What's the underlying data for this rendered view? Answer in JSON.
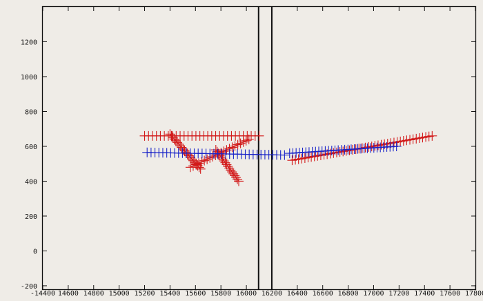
{
  "chart_data": {
    "type": "scatter",
    "title": "",
    "xlabel": "",
    "ylabel": "",
    "x_tick_labels": [
      "-14400",
      "14600",
      "14800",
      "15000",
      "15200",
      "15400",
      "15600",
      "15800",
      "16000",
      "16200",
      "16400",
      "16600",
      "16800",
      "17000",
      "17200",
      "17400",
      "17600",
      "17800"
    ],
    "y_tick_labels": [
      "-200",
      "0",
      "200",
      "400",
      "600",
      "800",
      "1000",
      "1200"
    ],
    "y_ticks": [
      -200,
      0,
      200,
      400,
      600,
      800,
      1000,
      1200
    ],
    "x_index_range": [
      0,
      17
    ],
    "y_range": [
      -220,
      1400
    ],
    "vertical_markers_x_index": [
      8.48,
      9.0
    ],
    "series": [
      {
        "color": "#d21a1a",
        "marker": "+",
        "segments": [
          {
            "from": [
              4.0,
              660
            ],
            "to": [
              8.5,
              660
            ],
            "count": 30
          },
          {
            "from": [
              5.0,
              670
            ],
            "to": [
              6.2,
              470
            ],
            "count": 22
          },
          {
            "from": [
              5.8,
              480
            ],
            "to": [
              8.1,
              640
            ],
            "count": 22
          },
          {
            "from": [
              6.8,
              580
            ],
            "to": [
              7.7,
              400
            ],
            "count": 18
          },
          {
            "from": [
              9.8,
              520
            ],
            "to": [
              15.3,
              660
            ],
            "count": 45
          }
        ]
      },
      {
        "color": "#1a24c8",
        "marker": "+",
        "segments": [
          {
            "from": [
              4.1,
              565
            ],
            "to": [
              9.5,
              550
            ],
            "count": 36
          },
          {
            "from": [
              9.7,
              560
            ],
            "to": [
              13.9,
              600
            ],
            "count": 34
          }
        ]
      }
    ]
  }
}
